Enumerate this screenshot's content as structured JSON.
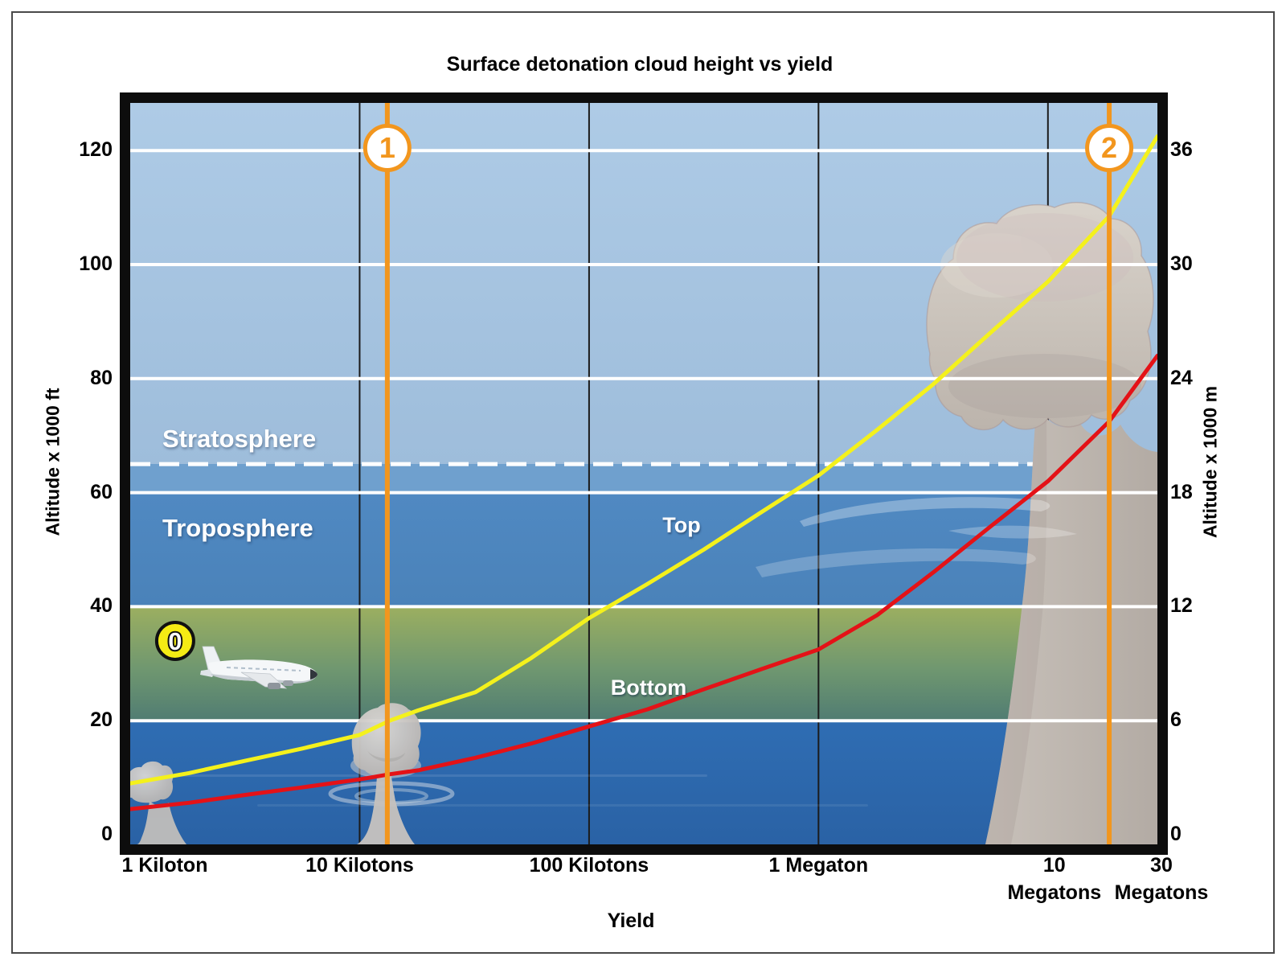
{
  "title": "Surface detonation cloud height vs yield",
  "axes": {
    "x_label": "Yield",
    "y_left_label": "Altitude x 1000 ft",
    "y_right_label": "Altitude x 1000 m"
  },
  "annotations": {
    "stratosphere": "Stratosphere",
    "troposphere": "Troposphere",
    "top_curve_label": "Top",
    "bottom_curve_label": "Bottom",
    "tropopause_alt_kft": 65
  },
  "colors": {
    "top_curve": "#F4F11C",
    "bottom_curve": "#E41217",
    "marker_orange": "#F2961E",
    "badge_yellow": "#F5EC14",
    "grid_white": "#FFFFFF",
    "grid_black": "#1B1B1B"
  },
  "chart_data": {
    "type": "line",
    "title": "Surface detonation cloud height vs yield",
    "xlabel": "Yield",
    "ylabel_left": "Altitude x 1000 ft",
    "ylabel_right": "Altitude x 1000 m",
    "x_scale": "log",
    "x_units": "kilotons",
    "x_range_kt": [
      1,
      30000
    ],
    "ylim_kft": [
      0,
      130
    ],
    "grid": true,
    "x_ticks": [
      {
        "kt": 1,
        "label": "1 Kiloton",
        "label2": "",
        "grid": false,
        "dx": 43
      },
      {
        "kt": 10,
        "label": "10 Kilotons",
        "label2": "",
        "grid": true,
        "dx": 0
      },
      {
        "kt": 100,
        "label": "100 Kilotons",
        "label2": "",
        "grid": true,
        "dx": 0
      },
      {
        "kt": 1000,
        "label": "1 Megaton",
        "label2": "",
        "grid": true,
        "dx": 0
      },
      {
        "kt": 10000,
        "label": "10",
        "label2": "Megatons",
        "grid": true,
        "dx": 8
      },
      {
        "kt": 30000,
        "label": "30",
        "label2": "Megatons",
        "grid": false,
        "dx": 5
      }
    ],
    "y_left_ticks": [
      {
        "ft": 0,
        "label": "0"
      },
      {
        "ft": 20,
        "label": "20"
      },
      {
        "ft": 40,
        "label": "40"
      },
      {
        "ft": 60,
        "label": "60"
      },
      {
        "ft": 80,
        "label": "80"
      },
      {
        "ft": 100,
        "label": "100"
      },
      {
        "ft": 120,
        "label": "120"
      }
    ],
    "y_right_ticks": [
      {
        "at_ft": 0,
        "label": "0"
      },
      {
        "at_ft": 20,
        "label": "6"
      },
      {
        "at_ft": 40,
        "label": "12"
      },
      {
        "at_ft": 60,
        "label": "18"
      },
      {
        "at_ft": 80,
        "label": "24"
      },
      {
        "at_ft": 100,
        "label": "30"
      },
      {
        "at_ft": 120,
        "label": "36"
      }
    ],
    "series": [
      {
        "name": "Top",
        "color": "#F4F11C",
        "x_kt": [
          1,
          1.8,
          3.2,
          5.6,
          10,
          13.5,
          18,
          32,
          56,
          100,
          180,
          316,
          560,
          1000,
          1800,
          3160,
          5600,
          10000,
          18500,
          30000
        ],
        "y_kft": [
          9,
          10.8,
          13,
          15.1,
          17.5,
          20,
          21.8,
          25,
          31,
          38,
          44,
          50,
          56.5,
          63,
          71,
          79,
          88,
          97,
          108.5,
          122.5
        ]
      },
      {
        "name": "Bottom",
        "color": "#E41217",
        "x_kt": [
          1,
          1.8,
          3.2,
          5.6,
          10,
          13.5,
          18,
          32,
          56,
          100,
          180,
          316,
          560,
          1000,
          1800,
          3160,
          5600,
          10000,
          18500,
          30000
        ],
        "y_kft": [
          4.5,
          5.6,
          7,
          8.3,
          9.7,
          10.6,
          11.3,
          13.5,
          16,
          19,
          22,
          25.5,
          29,
          32.5,
          38.5,
          46,
          54,
          62,
          72.5,
          84
        ]
      }
    ],
    "markers": [
      {
        "label": "0",
        "kind": "badge",
        "x_kt": 1.57,
        "alt_kft": 34
      },
      {
        "label": "1",
        "kind": "vline",
        "x_kt": 13.2
      },
      {
        "label": "2",
        "kind": "vline",
        "x_kt": 18500
      }
    ]
  }
}
